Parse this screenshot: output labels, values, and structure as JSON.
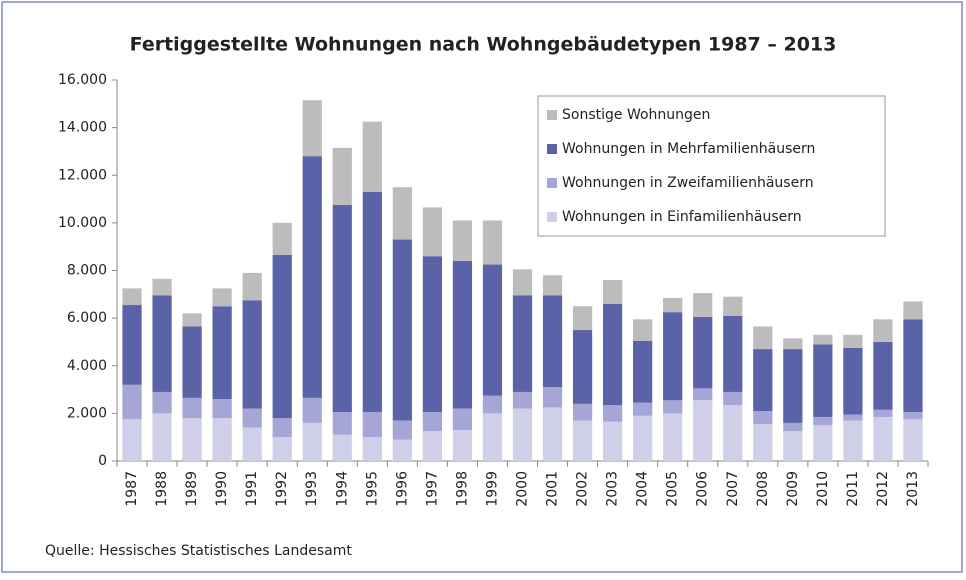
{
  "chart_data": {
    "type": "bar",
    "stacked": true,
    "title": "Fertiggestellte Wohnungen nach Wohngebäudetypen 1987 – 2013",
    "source": "Quelle: Hessisches Statistisches Landesamt",
    "categories": [
      "1987",
      "1988",
      "1989",
      "1990",
      "1991",
      "1992",
      "1993",
      "1994",
      "1995",
      "1996",
      "1997",
      "1998",
      "1999",
      "2000",
      "2001",
      "2002",
      "2003",
      "2004",
      "2005",
      "2006",
      "2007",
      "2008",
      "2009",
      "2010",
      "2011",
      "2012",
      "2013"
    ],
    "series": [
      {
        "name": "Wohnungen in Einfamilienhäusern",
        "color": "#cfd0e8",
        "values": [
          1750,
          2000,
          1800,
          1800,
          1400,
          1000,
          1600,
          1100,
          1000,
          900,
          1250,
          1300,
          2000,
          2200,
          2250,
          1700,
          1650,
          1900,
          2000,
          2550,
          2350,
          1550,
          1250,
          1500,
          1700,
          1850,
          1750
        ]
      },
      {
        "name": "Wohnungen in Zweifamilienhäusern",
        "color": "#a5a6d6",
        "values": [
          1450,
          900,
          850,
          800,
          800,
          800,
          1050,
          950,
          1050,
          800,
          800,
          900,
          750,
          700,
          850,
          700,
          700,
          550,
          550,
          500,
          550,
          550,
          350,
          350,
          250,
          300,
          300
        ]
      },
      {
        "name": "Wohnungen in Mehrfamilienhäusern",
        "color": "#5a62a8",
        "values": [
          3350,
          4050,
          3000,
          3900,
          4550,
          6850,
          10150,
          8700,
          9250,
          7600,
          6550,
          6200,
          5500,
          4050,
          3850,
          3100,
          4250,
          2600,
          3700,
          3000,
          3200,
          2600,
          3100,
          3050,
          2800,
          2850,
          3900
        ]
      },
      {
        "name": "Sonstige Wohnungen",
        "color": "#bcbcbc",
        "values": [
          700,
          700,
          550,
          750,
          1150,
          1350,
          2350,
          2400,
          2950,
          2200,
          2050,
          1700,
          1850,
          1100,
          850,
          1000,
          1000,
          900,
          600,
          1000,
          800,
          950,
          450,
          400,
          550,
          950,
          750
        ]
      }
    ],
    "ylim": [
      0,
      16000
    ],
    "yticks": [
      0,
      {
        "value": 2000,
        "label": "2.000"
      },
      {
        "value": 4000,
        "label": "4.000"
      },
      {
        "value": 6000,
        "label": "6.000"
      },
      {
        "value": 8000,
        "label": "8.000"
      },
      {
        "value": 10000,
        "label": "10.000"
      },
      {
        "value": 12000,
        "label": "12.000"
      },
      {
        "value": 14000,
        "label": "14.000"
      },
      {
        "value": 16000,
        "label": "16.000"
      }
    ],
    "grid": false,
    "legend": "upper right"
  }
}
